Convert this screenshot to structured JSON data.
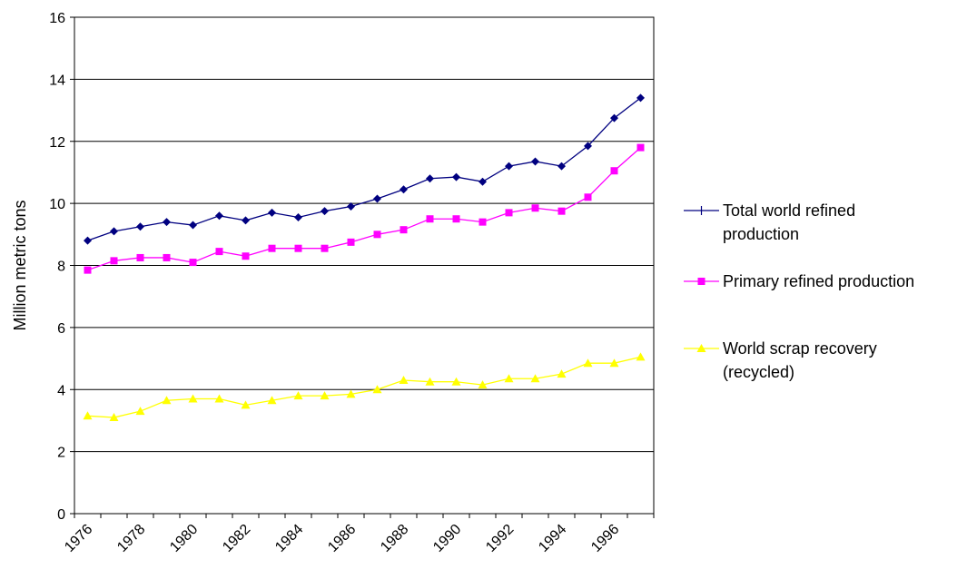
{
  "chart_data": {
    "type": "line",
    "title": "",
    "xlabel": "",
    "ylabel": "Million metric tons",
    "ylim": [
      0,
      16
    ],
    "y_ticks": [
      "0",
      "2",
      "4",
      "6",
      "8",
      "10",
      "12",
      "14",
      "16"
    ],
    "x_tick_labels": [
      "1976",
      "1978",
      "1980",
      "1982",
      "1984",
      "1986",
      "1988",
      "1990",
      "1992",
      "1994",
      "1996"
    ],
    "x": [
      1976,
      1977,
      1978,
      1979,
      1980,
      1981,
      1982,
      1983,
      1984,
      1985,
      1986,
      1987,
      1988,
      1989,
      1990,
      1991,
      1992,
      1993,
      1994,
      1995,
      1996,
      1997
    ],
    "grid": "horizontal",
    "legend_position": "right",
    "series": [
      {
        "name": "Total world refined production",
        "legend_lines": [
          "Total world refined",
          "production"
        ],
        "color": "#000080",
        "marker": "diamond",
        "values": [
          8.8,
          9.1,
          9.25,
          9.4,
          9.3,
          9.6,
          9.45,
          9.7,
          9.55,
          9.75,
          9.9,
          10.15,
          10.45,
          10.8,
          10.85,
          10.7,
          11.2,
          11.35,
          11.2,
          11.85,
          12.75,
          13.4
        ]
      },
      {
        "name": "Primary refined production",
        "legend_lines": [
          "Primary refined production"
        ],
        "color": "#FF00FF",
        "marker": "square",
        "values": [
          7.85,
          8.15,
          8.25,
          8.25,
          8.1,
          8.45,
          8.3,
          8.55,
          8.55,
          8.55,
          8.75,
          9.0,
          9.15,
          9.5,
          9.5,
          9.4,
          9.7,
          9.85,
          9.75,
          10.2,
          11.05,
          11.8
        ]
      },
      {
        "name": "World scrap recovery (recycled)",
        "legend_lines": [
          "World scrap recovery",
          "(recycled)"
        ],
        "color": "#FFFF00",
        "marker": "triangle",
        "values": [
          3.15,
          3.1,
          3.3,
          3.65,
          3.7,
          3.7,
          3.5,
          3.65,
          3.8,
          3.8,
          3.85,
          4.0,
          4.3,
          4.25,
          4.25,
          4.15,
          4.35,
          4.35,
          4.5,
          4.85,
          4.85,
          5.05
        ]
      }
    ]
  }
}
